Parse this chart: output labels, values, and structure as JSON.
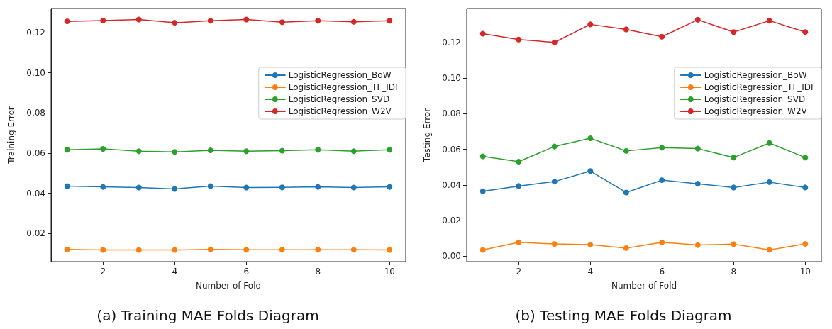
{
  "chart_data": [
    {
      "type": "line",
      "title": "(a) Training MAE Folds Diagram",
      "xlabel": "Number of Fold",
      "ylabel": "Training Error",
      "x": [
        1,
        2,
        3,
        4,
        5,
        6,
        7,
        8,
        9,
        10
      ],
      "series": [
        {
          "name": "LogisticRegression_BoW",
          "color": "#1f77b4",
          "values": [
            0.0436,
            0.0432,
            0.0429,
            0.0422,
            0.0436,
            0.0429,
            0.043,
            0.0432,
            0.0429,
            0.0432
          ]
        },
        {
          "name": "LogisticRegression_TF_IDF",
          "color": "#ff7f0e",
          "values": [
            0.0121,
            0.0118,
            0.0118,
            0.0118,
            0.0121,
            0.0119,
            0.0119,
            0.0119,
            0.0119,
            0.0118
          ]
        },
        {
          "name": "LogisticRegression_SVD",
          "color": "#2ca02c",
          "values": [
            0.0617,
            0.0621,
            0.061,
            0.0606,
            0.0614,
            0.061,
            0.0612,
            0.0617,
            0.061,
            0.0617
          ]
        },
        {
          "name": "LogisticRegression_W2V",
          "color": "#d62728",
          "values": [
            0.1256,
            0.126,
            0.1265,
            0.1249,
            0.1259,
            0.1265,
            0.1252,
            0.1259,
            0.1254,
            0.1259
          ]
        }
      ],
      "xlim": [
        0.55,
        10.45
      ],
      "xticks": [
        2,
        4,
        6,
        8,
        10
      ],
      "ylim": [
        0.006,
        0.132
      ],
      "yticks": [
        {
          "value": 0.02,
          "label": "0.02"
        },
        {
          "value": 0.04,
          "label": "0.04"
        },
        {
          "value": 0.06,
          "label": "0.06"
        },
        {
          "value": 0.08,
          "label": "0.08"
        },
        {
          "value": 0.1,
          "label": "0.10"
        },
        {
          "value": 0.12,
          "label": "0.12"
        }
      ],
      "grid": false,
      "legend": "right",
      "marker": "circle",
      "line_style": "solid"
    },
    {
      "type": "line",
      "title": "(b) Testing MAE Folds Diagram",
      "xlabel": "Number of Fold",
      "ylabel": "Testing Error",
      "x": [
        1,
        2,
        3,
        4,
        5,
        6,
        7,
        8,
        9,
        10
      ],
      "series": [
        {
          "name": "LogisticRegression_BoW",
          "color": "#1f77b4",
          "values": [
            0.0365,
            0.0394,
            0.0419,
            0.0478,
            0.0358,
            0.0427,
            0.0407,
            0.0386,
            0.0416,
            0.0386
          ]
        },
        {
          "name": "LogisticRegression_TF_IDF",
          "color": "#ff7f0e",
          "values": [
            0.0036,
            0.0078,
            0.0069,
            0.0065,
            0.0046,
            0.0078,
            0.0063,
            0.0068,
            0.0036,
            0.0069
          ]
        },
        {
          "name": "LogisticRegression_SVD",
          "color": "#2ca02c",
          "values": [
            0.0561,
            0.0531,
            0.0616,
            0.0662,
            0.0591,
            0.0609,
            0.0604,
            0.0554,
            0.0635,
            0.0554
          ]
        },
        {
          "name": "LogisticRegression_W2V",
          "color": "#d62728",
          "values": [
            0.1249,
            0.1216,
            0.12,
            0.1301,
            0.1273,
            0.1232,
            0.1327,
            0.1258,
            0.1322,
            0.1258
          ]
        }
      ],
      "xlim": [
        0.55,
        10.45
      ],
      "xticks": [
        2,
        4,
        6,
        8,
        10
      ],
      "ylim": [
        -0.003,
        0.139
      ],
      "yticks": [
        {
          "value": 0,
          "label": "0.00"
        },
        {
          "value": 0.02,
          "label": "0.02"
        },
        {
          "value": 0.04,
          "label": "0.04"
        },
        {
          "value": 0.06,
          "label": "0.06"
        },
        {
          "value": 0.08,
          "label": "0.08"
        },
        {
          "value": 0.1,
          "label": "0.10"
        },
        {
          "value": 0.12,
          "label": "0.12"
        }
      ],
      "grid": false,
      "legend": "right",
      "marker": "circle",
      "line_style": "solid"
    }
  ]
}
